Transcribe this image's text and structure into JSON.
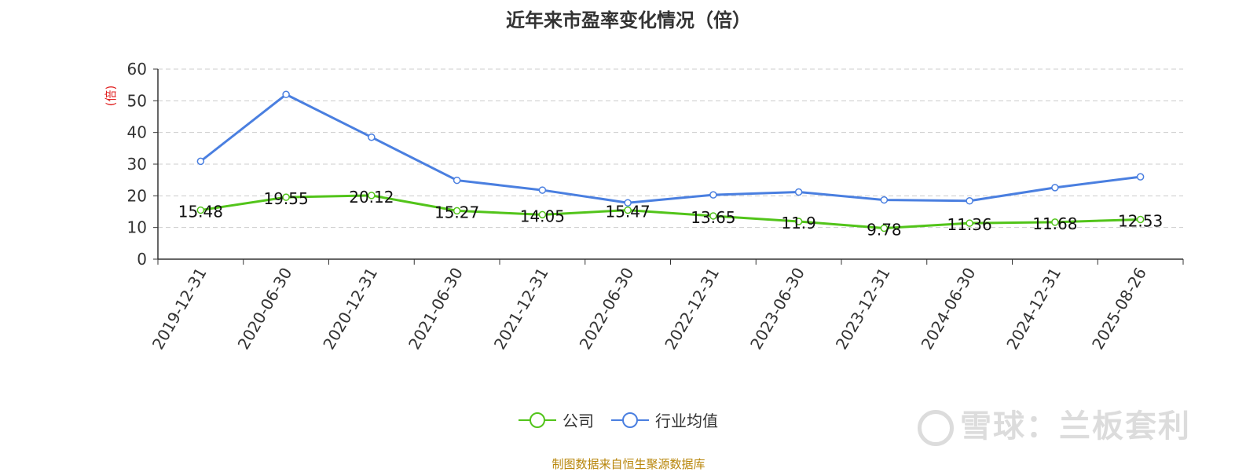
{
  "title": "近年来市盈率变化情况（倍）",
  "source": "制图数据来自恒生聚源数据库",
  "watermark": "雪球：兰板套利",
  "colors": {
    "company": "#52c41a",
    "industry": "#4a7fe0",
    "ylabel": "#e02020"
  },
  "chart_data": {
    "type": "line",
    "title": "近年来市盈率变化情况（倍）",
    "ylabel": "(倍)",
    "xlabel": "",
    "ylim": [
      0,
      60
    ],
    "yticks": [
      0,
      10,
      20,
      30,
      40,
      50,
      60
    ],
    "grid": true,
    "legend_position": "bottom",
    "categories": [
      "2019-12-31",
      "2020-06-30",
      "2020-12-31",
      "2021-06-30",
      "2021-12-31",
      "2022-06-30",
      "2022-12-31",
      "2023-06-30",
      "2023-12-31",
      "2024-06-30",
      "2024-12-31",
      "2025-08-26"
    ],
    "series": [
      {
        "name": "公司",
        "values": [
          15.48,
          19.55,
          20.12,
          15.27,
          14.05,
          15.47,
          13.65,
          11.9,
          9.78,
          11.36,
          11.68,
          12.53
        ],
        "labels": [
          "15.48",
          "19.55",
          "20.12",
          "15.27",
          "14.05",
          "15.47",
          "13.65",
          "11.9",
          "9.78",
          "11.36",
          "11.68",
          "12.53"
        ]
      },
      {
        "name": "行业均值",
        "values": [
          30.9,
          52.0,
          38.5,
          24.9,
          21.8,
          17.8,
          20.3,
          21.2,
          18.7,
          18.4,
          22.6,
          26.0
        ]
      }
    ]
  }
}
